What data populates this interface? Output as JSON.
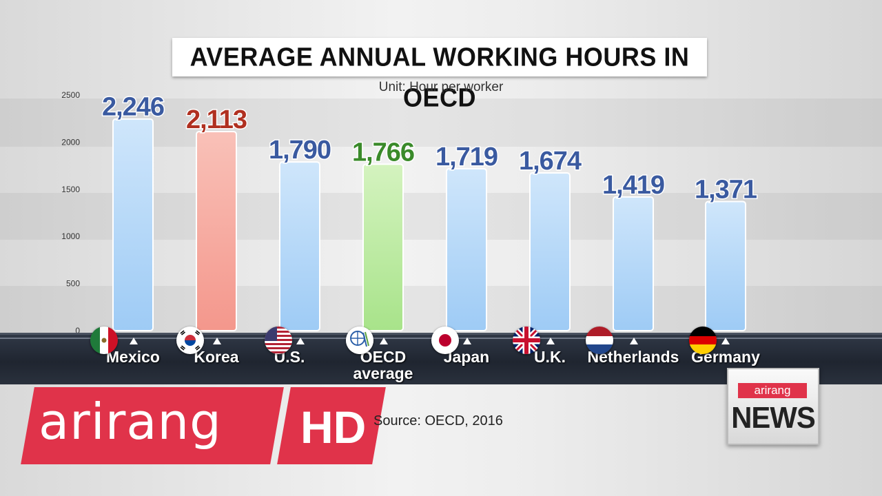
{
  "header": {
    "title": "AVERAGE ANNUAL WORKING HOURS IN OECD",
    "unit": "Unit: Hour per worker"
  },
  "chart_data": {
    "type": "bar",
    "title": "AVERAGE ANNUAL WORKING HOURS IN OECD",
    "subtitle": "Unit: Hour per worker",
    "categories": [
      "Mexico",
      "Korea",
      "U.S.",
      "OECD average",
      "Japan",
      "U.K.",
      "Netherlands",
      "Germany"
    ],
    "values": [
      2246,
      2113,
      1790,
      1766,
      1719,
      1674,
      1419,
      1371
    ],
    "value_labels": [
      "2,246",
      "2,113",
      "1,790",
      "1,766",
      "1,719",
      "1,674",
      "1,419",
      "1,371"
    ],
    "ylim": [
      0,
      2500
    ],
    "yticks": [
      "0",
      "500",
      "1000",
      "1500",
      "2000",
      "2500"
    ],
    "grid": false,
    "colors": {
      "default_bar": "#9ecbf5",
      "highlight_bar": "#f4978c",
      "oecd_bar": "#a8e38a",
      "default_label": "#3a5aa0",
      "highlight_label": "#b03020",
      "oecd_label": "#3a8a2a"
    }
  },
  "categories_display": [
    {
      "line1": "Mexico",
      "line2": "",
      "flag": "mexico-flag-icon"
    },
    {
      "line1": "Korea",
      "line2": "",
      "flag": "korea-flag-icon"
    },
    {
      "line1": "U.S.",
      "line2": "",
      "flag": "us-flag-icon"
    },
    {
      "line1": "OECD",
      "line2": "average",
      "flag": "oecd-logo-icon"
    },
    {
      "line1": "Japan",
      "line2": "",
      "flag": "japan-flag-icon"
    },
    {
      "line1": "U.K.",
      "line2": "",
      "flag": "uk-flag-icon"
    },
    {
      "line1": "Netherlands",
      "line2": "",
      "flag": "netherlands-flag-icon"
    },
    {
      "line1": "Germany",
      "line2": "",
      "flag": "germany-flag-icon"
    }
  ],
  "source": "Source: OECD, 2016",
  "branding": {
    "logo_word": "arirang",
    "hd": "HD",
    "news_small": "arirang",
    "news": "NEWS",
    "brand_color": "#e0334a"
  }
}
